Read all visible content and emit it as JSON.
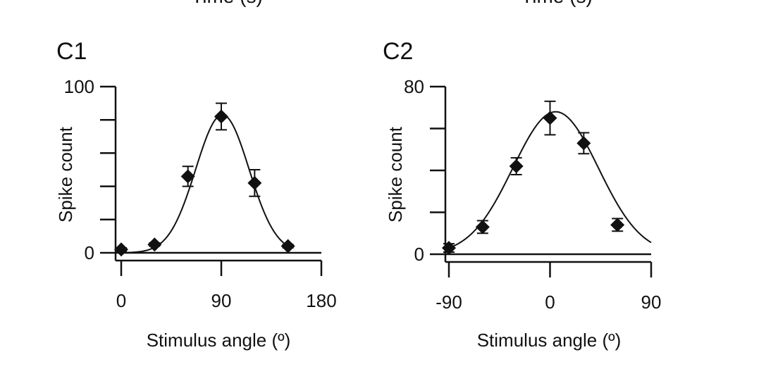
{
  "top_cropped_labels": [
    "Time (s)",
    "Time (s)"
  ],
  "chart_data": [
    {
      "panel_label": "C1",
      "type": "scatter",
      "xlabel": "Stimulus angle (º)",
      "ylabel": "Spike count",
      "xlim": [
        -5,
        180
      ],
      "ylim": [
        0,
        100
      ],
      "xticks": [
        0,
        90,
        180
      ],
      "yticks": [
        0,
        100
      ],
      "y_minor_ticks": [
        20,
        40,
        60,
        80
      ],
      "marker": "diamond",
      "color": "#111111",
      "points": [
        {
          "x": 0,
          "y": 2,
          "err": 1
        },
        {
          "x": 30,
          "y": 5,
          "err": 1
        },
        {
          "x": 60,
          "y": 46,
          "err": 6
        },
        {
          "x": 90,
          "y": 82,
          "err": 8
        },
        {
          "x": 120,
          "y": 42,
          "err": 8
        },
        {
          "x": 150,
          "y": 4,
          "err": 1
        }
      ],
      "fit": {
        "shape": "gaussian",
        "amplitude": 83,
        "center": 91,
        "sigma": 24,
        "baseline": 0,
        "x_range": [
          5,
          152
        ]
      }
    },
    {
      "panel_label": "C2",
      "type": "scatter",
      "xlabel": "Stimulus angle (º)",
      "ylabel": "Spike count",
      "xlim": [
        -90,
        90
      ],
      "ylim": [
        0,
        80
      ],
      "xticks": [
        -90,
        0,
        90
      ],
      "yticks": [
        0,
        80
      ],
      "y_minor_ticks": [
        20,
        40,
        60
      ],
      "marker": "diamond",
      "color": "#111111",
      "points": [
        {
          "x": -90,
          "y": 3,
          "err": 2
        },
        {
          "x": -60,
          "y": 13,
          "err": 3
        },
        {
          "x": -30,
          "y": 42,
          "err": 4
        },
        {
          "x": 0,
          "y": 65,
          "err": 8
        },
        {
          "x": 30,
          "y": 53,
          "err": 5
        },
        {
          "x": 60,
          "y": 14,
          "err": 3
        }
      ],
      "fit": {
        "shape": "gaussian",
        "amplitude": 68,
        "center": 5,
        "sigma": 38,
        "baseline": 0,
        "x_range": [
          -90,
          90
        ]
      }
    }
  ]
}
